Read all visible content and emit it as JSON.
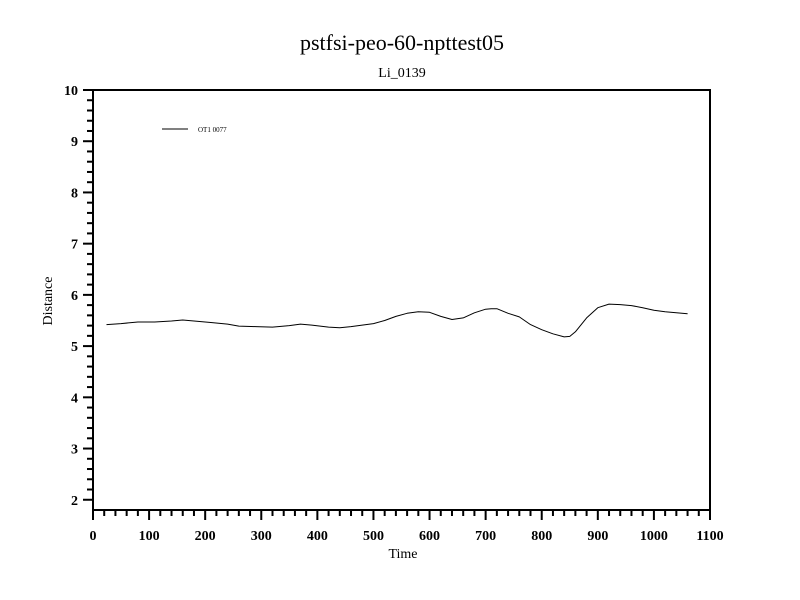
{
  "chart_data": {
    "type": "line",
    "title": "pstfsi-peo-60-npttest05",
    "subtitle": "Li_0139",
    "xlabel": "Time",
    "ylabel": "Distance",
    "xlim": [
      0,
      1100
    ],
    "ylim": [
      1.8,
      10
    ],
    "x_ticks": [
      0,
      100,
      200,
      300,
      400,
      500,
      600,
      700,
      800,
      900,
      1000,
      1100
    ],
    "y_ticks": [
      2,
      3,
      4,
      5,
      6,
      7,
      8,
      9,
      10
    ],
    "grid": false,
    "legend_position": "top-left",
    "series": [
      {
        "name": "OT1 0077",
        "color": "#000000",
        "x": [
          24,
          50,
          80,
          110,
          140,
          160,
          180,
          210,
          240,
          260,
          290,
          320,
          350,
          370,
          390,
          420,
          440,
          460,
          480,
          500,
          520,
          540,
          560,
          580,
          600,
          620,
          640,
          660,
          680,
          700,
          710,
          720,
          740,
          760,
          780,
          800,
          820,
          840,
          850,
          860,
          880,
          900,
          920,
          940,
          960,
          980,
          1000,
          1020,
          1040,
          1060
        ],
        "y": [
          5.42,
          5.44,
          5.47,
          5.47,
          5.49,
          5.51,
          5.49,
          5.46,
          5.43,
          5.39,
          5.38,
          5.37,
          5.4,
          5.43,
          5.41,
          5.37,
          5.36,
          5.38,
          5.41,
          5.44,
          5.5,
          5.58,
          5.64,
          5.67,
          5.66,
          5.58,
          5.52,
          5.55,
          5.65,
          5.72,
          5.73,
          5.73,
          5.64,
          5.57,
          5.42,
          5.32,
          5.24,
          5.18,
          5.19,
          5.28,
          5.55,
          5.75,
          5.82,
          5.81,
          5.79,
          5.75,
          5.7,
          5.67,
          5.65,
          5.63
        ]
      }
    ]
  }
}
